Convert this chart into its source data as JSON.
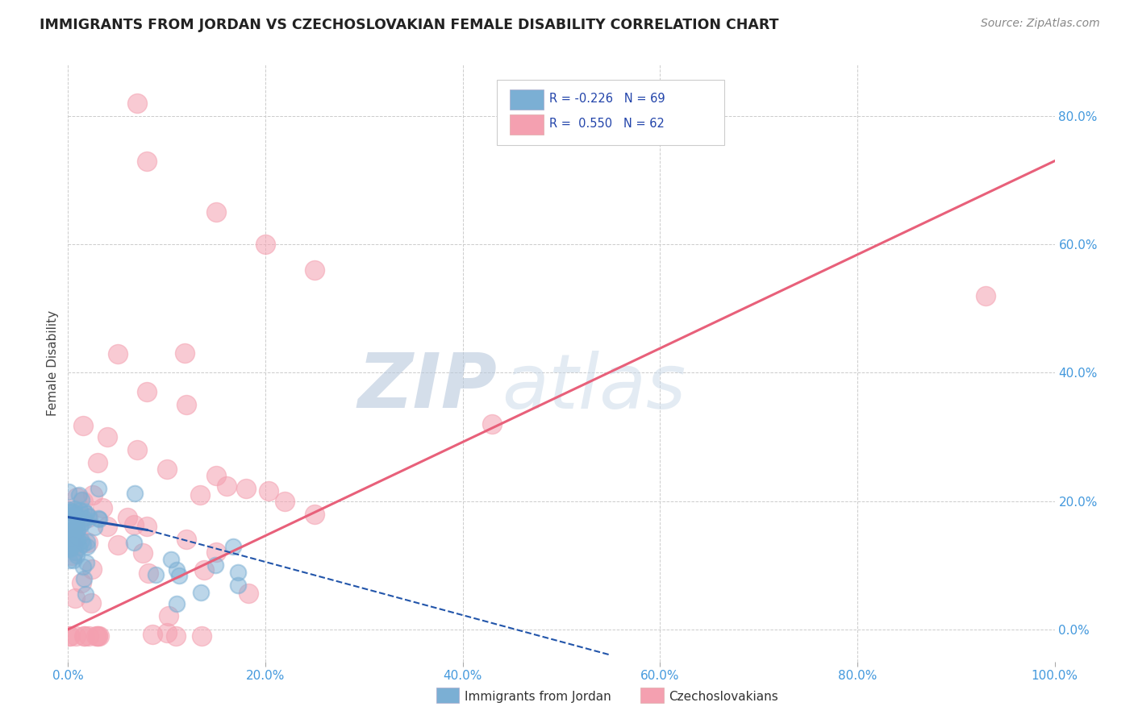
{
  "title": "IMMIGRANTS FROM JORDAN VS CZECHOSLOVAKIAN FEMALE DISABILITY CORRELATION CHART",
  "source": "Source: ZipAtlas.com",
  "ylabel": "Female Disability",
  "legend_labels": [
    "Immigrants from Jordan",
    "Czechoslovakians"
  ],
  "blue_color": "#7BAFD4",
  "pink_color": "#F4A0B0",
  "trend_blue_color": "#2255AA",
  "trend_pink_color": "#E8607A",
  "xmin": 0.0,
  "xmax": 1.0,
  "ymin": -0.05,
  "ymax": 0.88,
  "yticks": [
    0.0,
    0.2,
    0.4,
    0.6,
    0.8
  ],
  "ytick_labels": [
    "0.0%",
    "20.0%",
    "40.0%",
    "60.0%",
    "80.0%"
  ],
  "xticks": [
    0.0,
    0.2,
    0.4,
    0.6,
    0.8,
    1.0
  ],
  "xtick_labels": [
    "0.0%",
    "20.0%",
    "40.0%",
    "60.0%",
    "80.0%",
    "100.0%"
  ],
  "watermark_zip": "ZIP",
  "watermark_atlas": "atlas",
  "background_color": "#FFFFFF",
  "grid_color": "#CCCCCC",
  "blue_R": -0.226,
  "blue_N": 69,
  "pink_R": 0.55,
  "pink_N": 62,
  "pink_trend_x0": 0.0,
  "pink_trend_y0": 0.0,
  "pink_trend_x1": 1.0,
  "pink_trend_y1": 0.73,
  "blue_trend_solid_x0": 0.0,
  "blue_trend_solid_y0": 0.175,
  "blue_trend_solid_x1": 0.08,
  "blue_trend_solid_y1": 0.155,
  "blue_trend_dash_x0": 0.08,
  "blue_trend_dash_y0": 0.155,
  "blue_trend_dash_x1": 0.55,
  "blue_trend_dash_y1": -0.04
}
